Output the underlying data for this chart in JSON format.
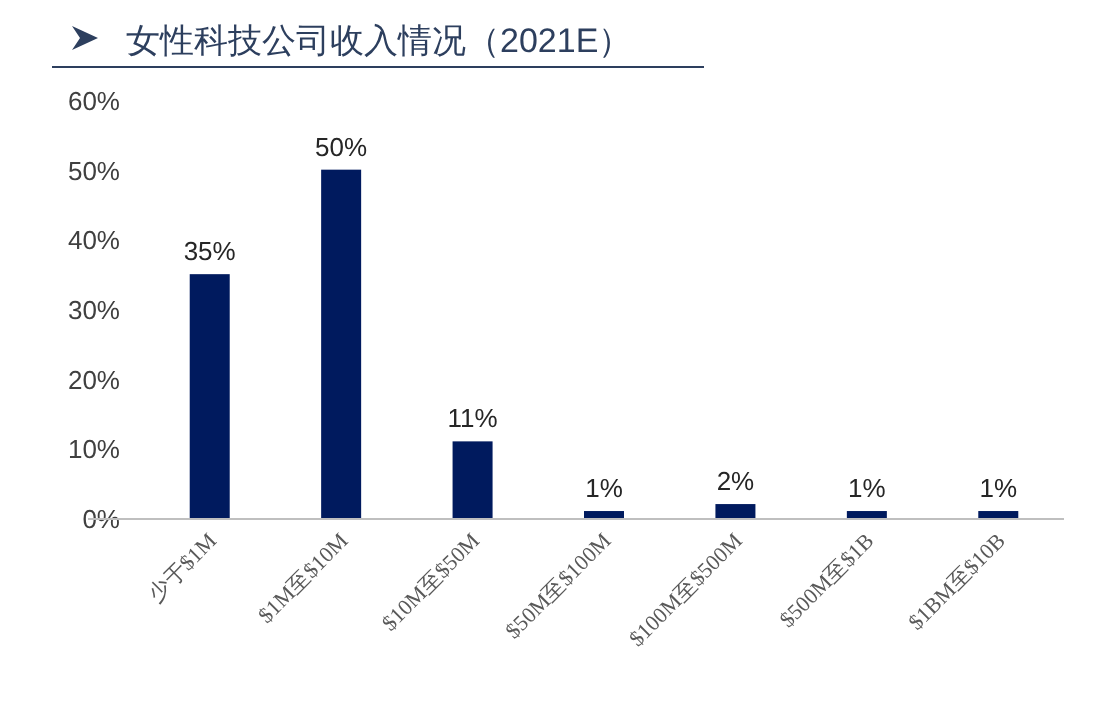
{
  "chart_data": {
    "type": "bar",
    "title": "女性科技公司收入情况（2021E）",
    "categories": [
      "少于$1M",
      "$1M至$10M",
      "$10M至$50M",
      "$50M至$100M",
      "$100M至$500M",
      "$500M至$1B",
      "$1BM至$10B"
    ],
    "values": [
      35,
      50,
      11,
      1,
      2,
      1,
      1
    ],
    "value_labels": [
      "35%",
      "50%",
      "11%",
      "1%",
      "2%",
      "1%",
      "1%"
    ],
    "color": "#001a5e",
    "ylim": [
      0,
      60
    ],
    "yticks": [
      {
        "value": 0,
        "label": "0%"
      },
      {
        "value": 10,
        "label": "10%"
      },
      {
        "value": 20,
        "label": "20%"
      },
      {
        "value": 30,
        "label": "30%"
      },
      {
        "value": 40,
        "label": "40%"
      },
      {
        "value": 50,
        "label": "50%"
      },
      {
        "value": 60,
        "label": "60%"
      }
    ]
  }
}
